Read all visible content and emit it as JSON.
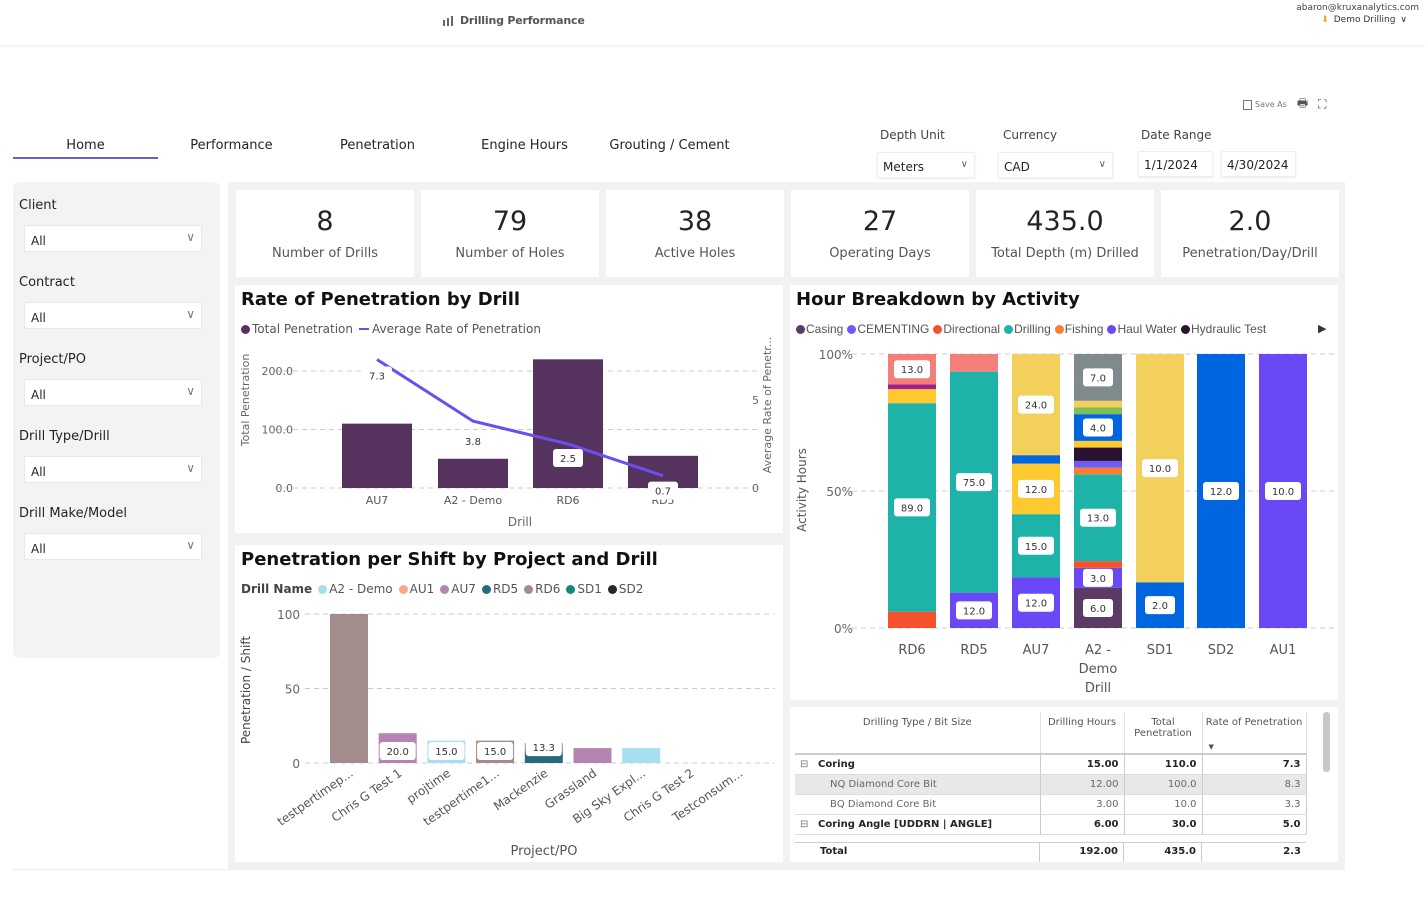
{
  "header": {
    "app_title": "Drilling Performance",
    "user_email": "abaron@kruxanalytics.com",
    "org": "Demo Drilling"
  },
  "toolbar": {
    "save_as": "Save As"
  },
  "tabs": [
    {
      "label": "Home",
      "active": true
    },
    {
      "label": "Performance"
    },
    {
      "label": "Penetration"
    },
    {
      "label": "Engine Hours"
    },
    {
      "label": "Grouting / Cement"
    }
  ],
  "top_filters": {
    "depth_unit": {
      "label": "Depth Unit",
      "value": "Meters"
    },
    "currency": {
      "label": "Currency",
      "value": "CAD"
    },
    "date_range": {
      "label": "Date Range",
      "start": "1/1/2024",
      "end": "4/30/2024"
    }
  },
  "sidebar": {
    "filters": [
      {
        "label": "Client",
        "value": "All"
      },
      {
        "label": "Contract",
        "value": "All"
      },
      {
        "label": "Project/PO",
        "value": "All"
      },
      {
        "label": "Drill Type/Drill",
        "value": "All"
      },
      {
        "label": "Drill Make/Model",
        "value": "All"
      }
    ]
  },
  "kpis": [
    {
      "value": "8",
      "label": "Number of Drills"
    },
    {
      "value": "79",
      "label": "Number of Holes"
    },
    {
      "value": "38",
      "label": "Active Holes"
    },
    {
      "value": "27",
      "label": "Operating Days"
    },
    {
      "value": "435.0",
      "label": "Total Depth (m) Drilled"
    },
    {
      "value": "2.0",
      "label": "Penetration/Day/Drill"
    }
  ],
  "chart_data": [
    {
      "type": "bar+line",
      "title": "Rate of Penetration by Drill",
      "xlabel": "Drill",
      "ylabel": "Total Penetration",
      "y2label": "Average Rate of Penetr...",
      "categories": [
        "AU7",
        "A2 - Demo",
        "RD6",
        "RD5"
      ],
      "ylim": [
        0,
        230
      ],
      "yticks": [
        "0.0",
        "100.0",
        "200.0"
      ],
      "y2lim": [
        0,
        8.5
      ],
      "y2ticks": [
        "0",
        "5"
      ],
      "grid": true,
      "series": [
        {
          "name": "Total Penetration",
          "type": "bar",
          "color": "#56325f",
          "values": [
            110,
            50,
            220,
            55
          ]
        },
        {
          "name": "Average Rate of Penetration",
          "type": "line",
          "color": "#6a4ff0",
          "values": [
            7.3,
            3.8,
            2.5,
            0.7
          ],
          "labels": [
            "7.3",
            "3.8",
            "2.5",
            "0.7"
          ]
        }
      ],
      "legend": "top-left"
    },
    {
      "type": "stacked-bar",
      "title": "Penetration per Shift by Project and Drill",
      "xlabel": "Project/PO",
      "ylabel": "Penetration / Shift",
      "legend_title": "Drill Name",
      "legend_entries": [
        {
          "name": "A2 - Demo",
          "color": "#a8dff0"
        },
        {
          "name": "AU1",
          "color": "#f7a98a"
        },
        {
          "name": "AU7",
          "color": "#b584b0"
        },
        {
          "name": "RD5",
          "color": "#256b7f"
        },
        {
          "name": "RD6",
          "color": "#a38c8c"
        },
        {
          "name": "SD1",
          "color": "#11897b"
        },
        {
          "name": "SD2",
          "color": "#222a30"
        }
      ],
      "categories": [
        "testpertimep...",
        "Chris G Test 1",
        "projtime",
        "testpertime1...",
        "Mackenzie",
        "Grassland",
        "Big Sky Expl...",
        "Chris G Test 2",
        "Testconsum..."
      ],
      "ylim": [
        0,
        100
      ],
      "yticks": [
        "0",
        "50",
        "100"
      ],
      "grid": true,
      "stacks": [
        [
          {
            "drill": "RD6",
            "value": 100
          }
        ],
        [
          {
            "drill": "AU7",
            "value": 20
          }
        ],
        [
          {
            "drill": "A2 - Demo",
            "value": 15
          }
        ],
        [
          {
            "drill": "RD6",
            "value": 15
          }
        ],
        [
          {
            "drill": "RD5",
            "value": 8
          },
          {
            "drill": "RD6",
            "value": 5.3
          }
        ],
        [
          {
            "drill": "AU7",
            "value": 10
          }
        ],
        [
          {
            "drill": "A2 - Demo",
            "value": 10
          }
        ],
        [],
        []
      ],
      "data_labels": [
        "",
        "20.0",
        "15.0",
        "15.0",
        "13.3",
        "",
        "",
        "",
        ""
      ]
    },
    {
      "type": "100%-stacked-bar",
      "title": "Hour Breakdown by Activity",
      "xlabel": "Drill",
      "ylabel": "Activity Hours",
      "yticks": [
        "0%",
        "50%",
        "100%"
      ],
      "grid": true,
      "legend_entries": [
        {
          "name": "Casing",
          "color": "#5b3a66"
        },
        {
          "name": "CEMENTING",
          "color": "#6a5cf5"
        },
        {
          "name": "Directional",
          "color": "#f4522d"
        },
        {
          "name": "Drilling",
          "color": "#1db3a8"
        },
        {
          "name": "Fishing",
          "color": "#fb7d2f"
        },
        {
          "name": "Haul Water",
          "color": "#6b48f5"
        },
        {
          "name": "Hydraulic Test",
          "color": "#2a1233"
        }
      ],
      "categories": [
        "RD6",
        "RD5",
        "AU7",
        "A2 - Demo Drill",
        "SD1",
        "SD2",
        "AU1"
      ],
      "stacks": [
        [
          {
            "name": "Directional",
            "color": "#f4522d",
            "value": 7
          },
          {
            "name": "Drilling",
            "color": "#1db3a8",
            "value": 89,
            "label": "89.0"
          },
          {
            "color": "#fcc92f",
            "value": 6
          },
          {
            "color": "#a0208f",
            "value": 2
          },
          {
            "color": "#f47f7a",
            "value": 13,
            "label": "13.0"
          }
        ],
        [
          {
            "name": "Haul Water",
            "color": "#6b48f5",
            "value": 12,
            "label": "12.0"
          },
          {
            "name": "Drilling",
            "color": "#1db3a8",
            "value": 75,
            "label": "75.0"
          },
          {
            "color": "#f47f7a",
            "value": 6
          }
        ],
        [
          {
            "name": "Haul Water",
            "color": "#6b48f5",
            "value": 12,
            "label": "12.0"
          },
          {
            "name": "Drilling",
            "color": "#1db3a8",
            "value": 15,
            "label": "15.0"
          },
          {
            "color": "#fcc92f",
            "value": 12,
            "label": "12.0"
          },
          {
            "color": "#0066e0",
            "value": 2
          },
          {
            "color": "#f3cf5b",
            "value": 24,
            "label": "24.0"
          }
        ],
        [
          {
            "name": "Casing",
            "color": "#5b3a66",
            "value": 6,
            "label": "6.0"
          },
          {
            "name": "Haul Water",
            "color": "#6b48f5",
            "value": 3,
            "label": "3.0"
          },
          {
            "name": "Directional",
            "color": "#f4522d",
            "value": 1
          },
          {
            "name": "Drilling",
            "color": "#1db3a8",
            "value": 13,
            "label": "13.0"
          },
          {
            "name": "Fishing",
            "color": "#fb7d2f",
            "value": 1
          },
          {
            "name": "CEMENTING",
            "color": "#6a5cf5",
            "value": 1
          },
          {
            "name": "Hydraulic Test",
            "color": "#2a1233",
            "value": 2
          },
          {
            "color": "#fcc92f",
            "value": 1
          },
          {
            "color": "#0066e0",
            "value": 4,
            "label": "4.0"
          },
          {
            "color": "#7dc05a",
            "value": 1
          },
          {
            "color": "#f3cf5b",
            "value": 1
          },
          {
            "color": "#7f8a8c",
            "value": 7,
            "label": "7.0"
          }
        ],
        [
          {
            "color": "#0066e0",
            "value": 2,
            "label": "2.0"
          },
          {
            "color": "#f3cf5b",
            "value": 10,
            "label": "10.0"
          }
        ],
        [
          {
            "color": "#0066e0",
            "value": 12,
            "label": "12.0"
          }
        ],
        [
          {
            "name": "Haul Water",
            "color": "#6b48f5",
            "value": 10,
            "label": "10.0"
          }
        ]
      ]
    }
  ],
  "table": {
    "columns": [
      "Drilling Type / Bit Size",
      "Drilling Hours",
      "Total Penetration",
      "Rate of Penetration"
    ],
    "rows": [
      {
        "type": "group",
        "name": "Coring",
        "hours": "15.00",
        "pen": "110.0",
        "rop": "7.3"
      },
      {
        "type": "child",
        "name": "NQ Diamond Core Bit",
        "hours": "12.00",
        "pen": "100.0",
        "rop": "8.3"
      },
      {
        "type": "child",
        "name": "BQ Diamond Core Bit",
        "hours": "3.00",
        "pen": "10.0",
        "rop": "3.3"
      },
      {
        "type": "group",
        "name": "Coring Angle [UDDRN | ANGLE]",
        "hours": "6.00",
        "pen": "30.0",
        "rop": "5.0"
      }
    ],
    "total": {
      "name": "Total",
      "hours": "192.00",
      "pen": "435.0",
      "rop": "2.3"
    }
  }
}
